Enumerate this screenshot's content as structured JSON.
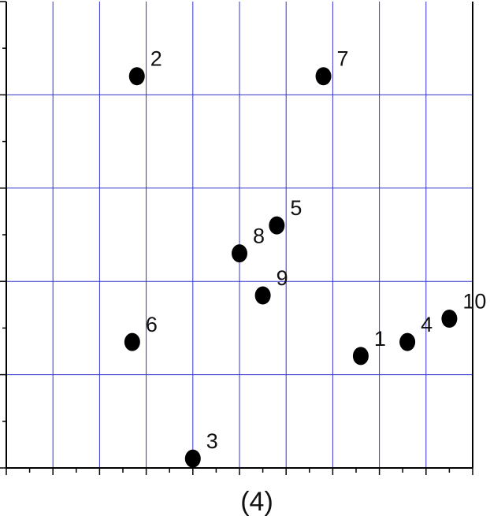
{
  "chart_data": {
    "type": "scatter",
    "title": "",
    "caption": "(4)",
    "xlabel": "",
    "ylabel": "",
    "grid": true,
    "grid_color": "#3333cc",
    "point_color": "#000000",
    "x_major_count": 10,
    "y_major_count": 5,
    "xlim": [
      0,
      10
    ],
    "ylim": [
      0,
      5
    ],
    "points": [
      {
        "label": "1",
        "x": 7.6,
        "y": 1.2
      },
      {
        "label": "2",
        "x": 2.8,
        "y": 4.2
      },
      {
        "label": "3",
        "x": 4.0,
        "y": 0.1
      },
      {
        "label": "4",
        "x": 8.6,
        "y": 1.35
      },
      {
        "label": "5",
        "x": 5.8,
        "y": 2.6
      },
      {
        "label": "6",
        "x": 2.7,
        "y": 1.35
      },
      {
        "label": "7",
        "x": 6.8,
        "y": 4.2
      },
      {
        "label": "8",
        "x": 5.0,
        "y": 2.3
      },
      {
        "label": "9",
        "x": 5.5,
        "y": 1.85
      },
      {
        "label": "10",
        "x": 9.5,
        "y": 1.6
      }
    ]
  }
}
